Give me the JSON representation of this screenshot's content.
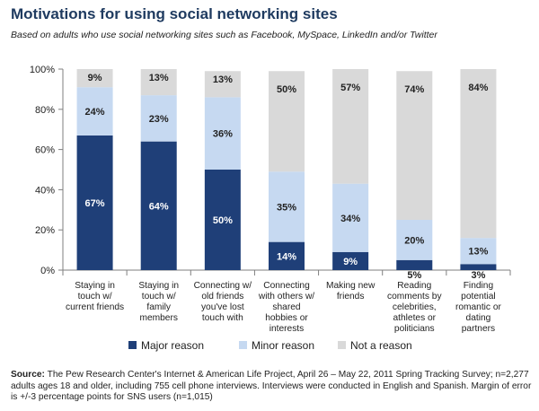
{
  "title": "Motivations for using social networking sites",
  "subtitle": "Based on adults who use social networking sites such as Facebook, MySpace,  LinkedIn and/or Twitter",
  "source": {
    "label": "Source:",
    "text": "The Pew Research Center's Internet & American Life Project, April 26 – May 22, 2011 Spring Tracking Survey; n=2,277 adults ages 18 and older, including 755 cell phone interviews. Interviews were conducted in English and Spanish. Margin of error is +/-3 percentage points for SNS users (n=1,015)"
  },
  "colors": {
    "major": "#1f3f78",
    "minor": "#c6d9f1",
    "not": "#d9d9d9"
  },
  "chart_data": {
    "type": "bar",
    "stacked": true,
    "ylim": [
      0,
      100
    ],
    "yticks": [
      "0%",
      "20%",
      "40%",
      "60%",
      "80%",
      "100%"
    ],
    "categories": [
      [
        "Staying in",
        "touch w/",
        "current friends"
      ],
      [
        "Staying in",
        "touch w/",
        "family",
        "members"
      ],
      [
        "Connecting w/",
        "old friends",
        "you've lost",
        "touch with"
      ],
      [
        "Connecting",
        "with others w/",
        "shared",
        "hobbies or",
        "interests"
      ],
      [
        "Making new",
        "friends"
      ],
      [
        "Reading",
        "comments by",
        "celebrities,",
        "athletes or",
        "politicians"
      ],
      [
        "Finding",
        "potential",
        "romantic or",
        "dating",
        "partners"
      ]
    ],
    "series": [
      {
        "name": "Major reason",
        "values": [
          67,
          64,
          50,
          14,
          9,
          5,
          3
        ],
        "labels": [
          "67%",
          "64%",
          "50%",
          "14%",
          "9%",
          "5%",
          "3%"
        ]
      },
      {
        "name": "Minor reason",
        "values": [
          24,
          23,
          36,
          35,
          34,
          20,
          13
        ],
        "labels": [
          "24%",
          "23%",
          "36%",
          "35%",
          "34%",
          "20%",
          "13%"
        ]
      },
      {
        "name": "Not a reason",
        "values": [
          9,
          13,
          13,
          50,
          57,
          74,
          84
        ],
        "labels": [
          "9%",
          "13%",
          "13%",
          "50%",
          "57%",
          "74%",
          "84%"
        ]
      }
    ],
    "legend": [
      "Major reason",
      "Minor reason",
      "Not a reason"
    ]
  }
}
